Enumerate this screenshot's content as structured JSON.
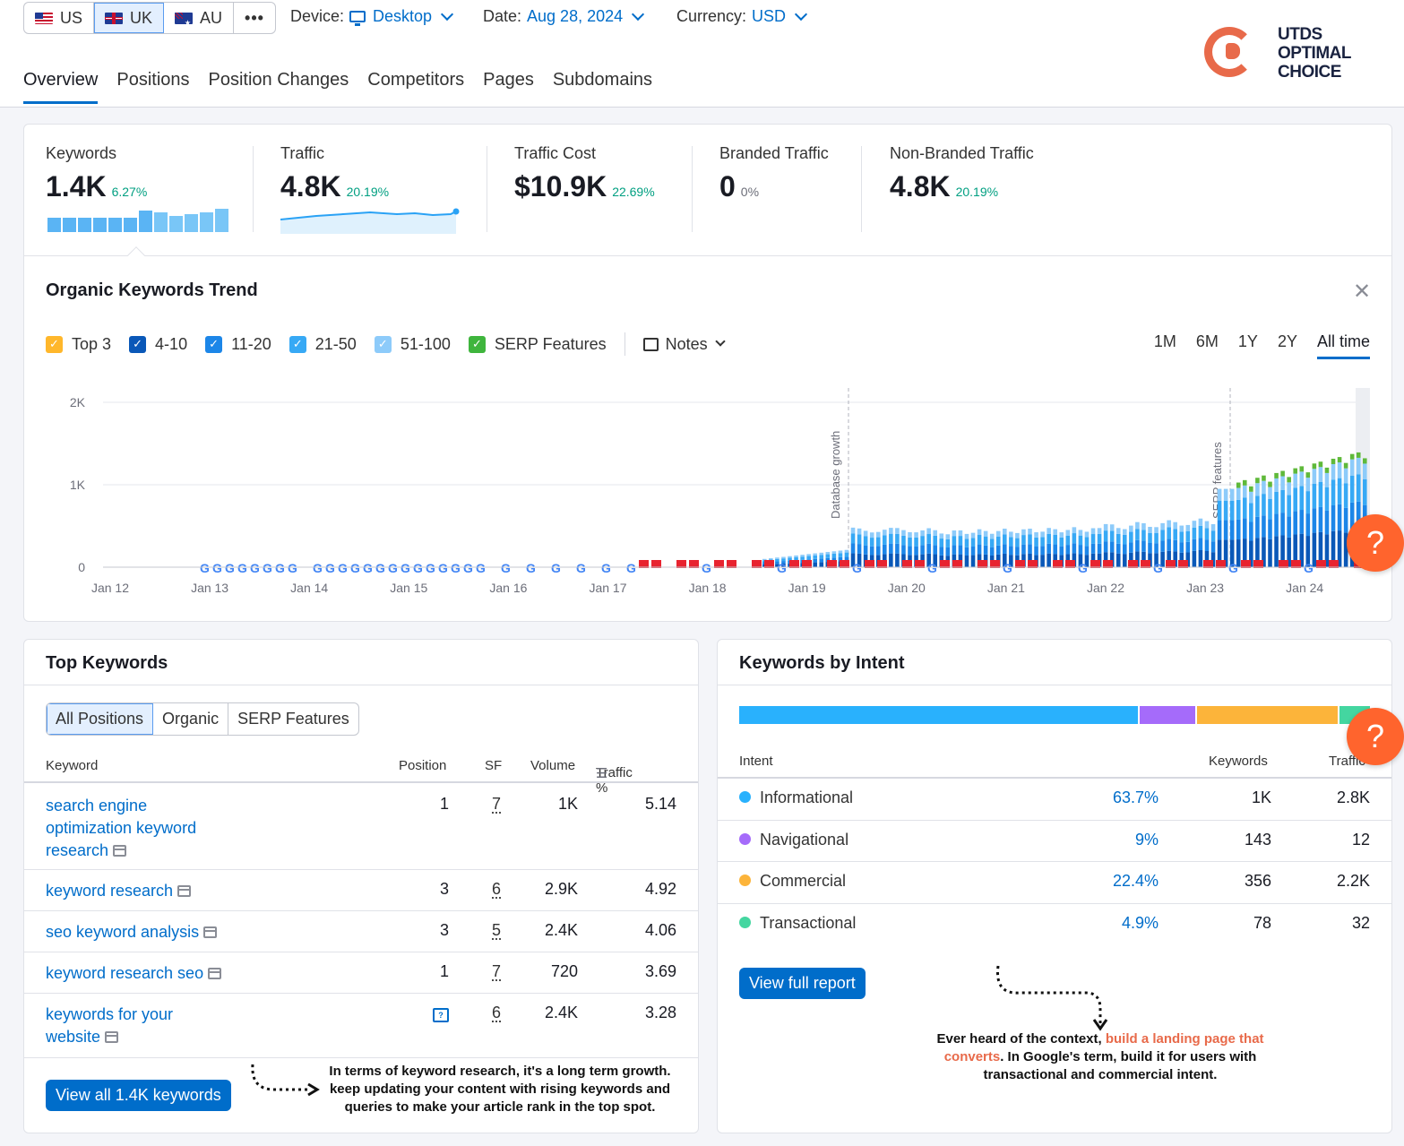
{
  "databases": [
    {
      "code": "US",
      "flag": "us-flag-icon",
      "active": false
    },
    {
      "code": "UK",
      "flag": "uk-flag-icon",
      "active": true
    },
    {
      "code": "AU",
      "flag": "au-flag-icon",
      "active": false
    }
  ],
  "more_label": "•••",
  "filters": {
    "device_label": "Device:",
    "device_value": "Desktop",
    "date_label": "Date:",
    "date_value": "Aug 28, 2024",
    "currency_label": "Currency:",
    "currency_value": "USD"
  },
  "tabs": [
    "Overview",
    "Positions",
    "Position Changes",
    "Competitors",
    "Pages",
    "Subdomains"
  ],
  "logo": {
    "line1": "UTDS",
    "line2": "OPTIMAL",
    "line3": "CHOICE",
    "color": "#e86a4a"
  },
  "kpis": [
    {
      "label": "Keywords",
      "value": "1.4K",
      "delta": "6.27%"
    },
    {
      "label": "Traffic",
      "value": "4.8K",
      "delta": "20.19%"
    },
    {
      "label": "Traffic Cost",
      "value": "$10.9K",
      "delta": "22.69%"
    },
    {
      "label": "Branded Traffic",
      "value": "0",
      "delta": "0%"
    },
    {
      "label": "Non-Branded Traffic",
      "value": "4.8K",
      "delta": "20.19%"
    }
  ],
  "trend": {
    "title": "Organic Keywords Trend",
    "legend": [
      {
        "label": "Top 3",
        "color": "#ffb72b"
      },
      {
        "label": "4-10",
        "color": "#0a58b8"
      },
      {
        "label": "11-20",
        "color": "#1c86e8"
      },
      {
        "label": "21-50",
        "color": "#37a9f5"
      },
      {
        "label": "51-100",
        "color": "#8dcbfa"
      },
      {
        "label": "SERP Features",
        "color": "#3fb53d"
      }
    ],
    "notes_label": "Notes",
    "periods": [
      "1M",
      "6M",
      "1Y",
      "2Y",
      "All time"
    ],
    "active_period": "All time"
  },
  "chart_data": {
    "type": "bar",
    "y_ticks": [
      "2K",
      "1K",
      "0"
    ],
    "ylim": [
      0,
      2000
    ],
    "x_ticks": [
      "Jan 12",
      "Jan 13",
      "Jan 14",
      "Jan 15",
      "Jan 16",
      "Jan 17",
      "Jan 18",
      "Jan 19",
      "Jan 20",
      "Jan 21",
      "Jan 22",
      "Jan 23",
      "Jan 24"
    ],
    "annotations": [
      {
        "label": "Database growth",
        "at": "Jan 19 (Feb 2019)"
      },
      {
        "label": "SERP features",
        "at": "Jan 23 (Jan 2023)"
      }
    ],
    "series": [
      {
        "name": "51-100",
        "values_range": [
          0,
          1550
        ]
      },
      {
        "name": "SERP Features",
        "values_range": [
          0,
          1450
        ]
      }
    ],
    "note": "Monthly bars start around Jan 18 at ~100 keywords, jump to ~400 after Database growth, and rise to ~1.4K by Jan 24 (Aug 2024)."
  },
  "top_keywords": {
    "title": "Top Keywords",
    "segments": [
      "All Positions",
      "Organic",
      "SERP Features"
    ],
    "active_segment": "All Positions",
    "columns": [
      "Keyword",
      "Position",
      "SF",
      "Volume",
      "Traffic %"
    ],
    "rows": [
      {
        "keyword": "search engine optimization keyword research",
        "position": "1",
        "sf": "7",
        "volume": "1K",
        "traffic": "5.14"
      },
      {
        "keyword": "keyword research",
        "position": "3",
        "sf": "6",
        "volume": "2.9K",
        "traffic": "4.92"
      },
      {
        "keyword": "seo keyword analysis",
        "position": "3",
        "sf": "5",
        "volume": "2.4K",
        "traffic": "4.06"
      },
      {
        "keyword": "keyword research seo",
        "position": "1",
        "sf": "7",
        "volume": "720",
        "traffic": "3.69"
      },
      {
        "keyword": "keywords for your website",
        "position": "",
        "sf": "6",
        "volume": "2.4K",
        "traffic": "3.28"
      }
    ],
    "button": "View all 1.4K keywords"
  },
  "intent": {
    "title": "Keywords by Intent",
    "columns": [
      "Intent",
      "Keywords",
      "Traffic"
    ],
    "rows": [
      {
        "name": "Informational",
        "pct": "63.7%",
        "keywords": "1K",
        "traffic": "2.8K",
        "color": "#29b1fd",
        "share": 63.7
      },
      {
        "name": "Navigational",
        "pct": "9%",
        "keywords": "143",
        "traffic": "12",
        "color": "#a56bfa",
        "share": 9
      },
      {
        "name": "Commercial",
        "pct": "22.4%",
        "keywords": "356",
        "traffic": "2.2K",
        "color": "#fcb43a",
        "share": 22.4
      },
      {
        "name": "Transactional",
        "pct": "4.9%",
        "keywords": "78",
        "traffic": "32",
        "color": "#44d6a0",
        "share": 4.9
      }
    ],
    "button": "View full report"
  },
  "notes": {
    "left": "In terms of keyword research, it's a long term growth. keep updating your content with rising keywords and queries to make your article rank in the top spot.",
    "right_pre": "Ever heard of the context, ",
    "right_hl": "build a landing page that converts",
    "right_post": ". In Google's term, build it for users with transactional and commercial intent."
  },
  "help_label": "?"
}
